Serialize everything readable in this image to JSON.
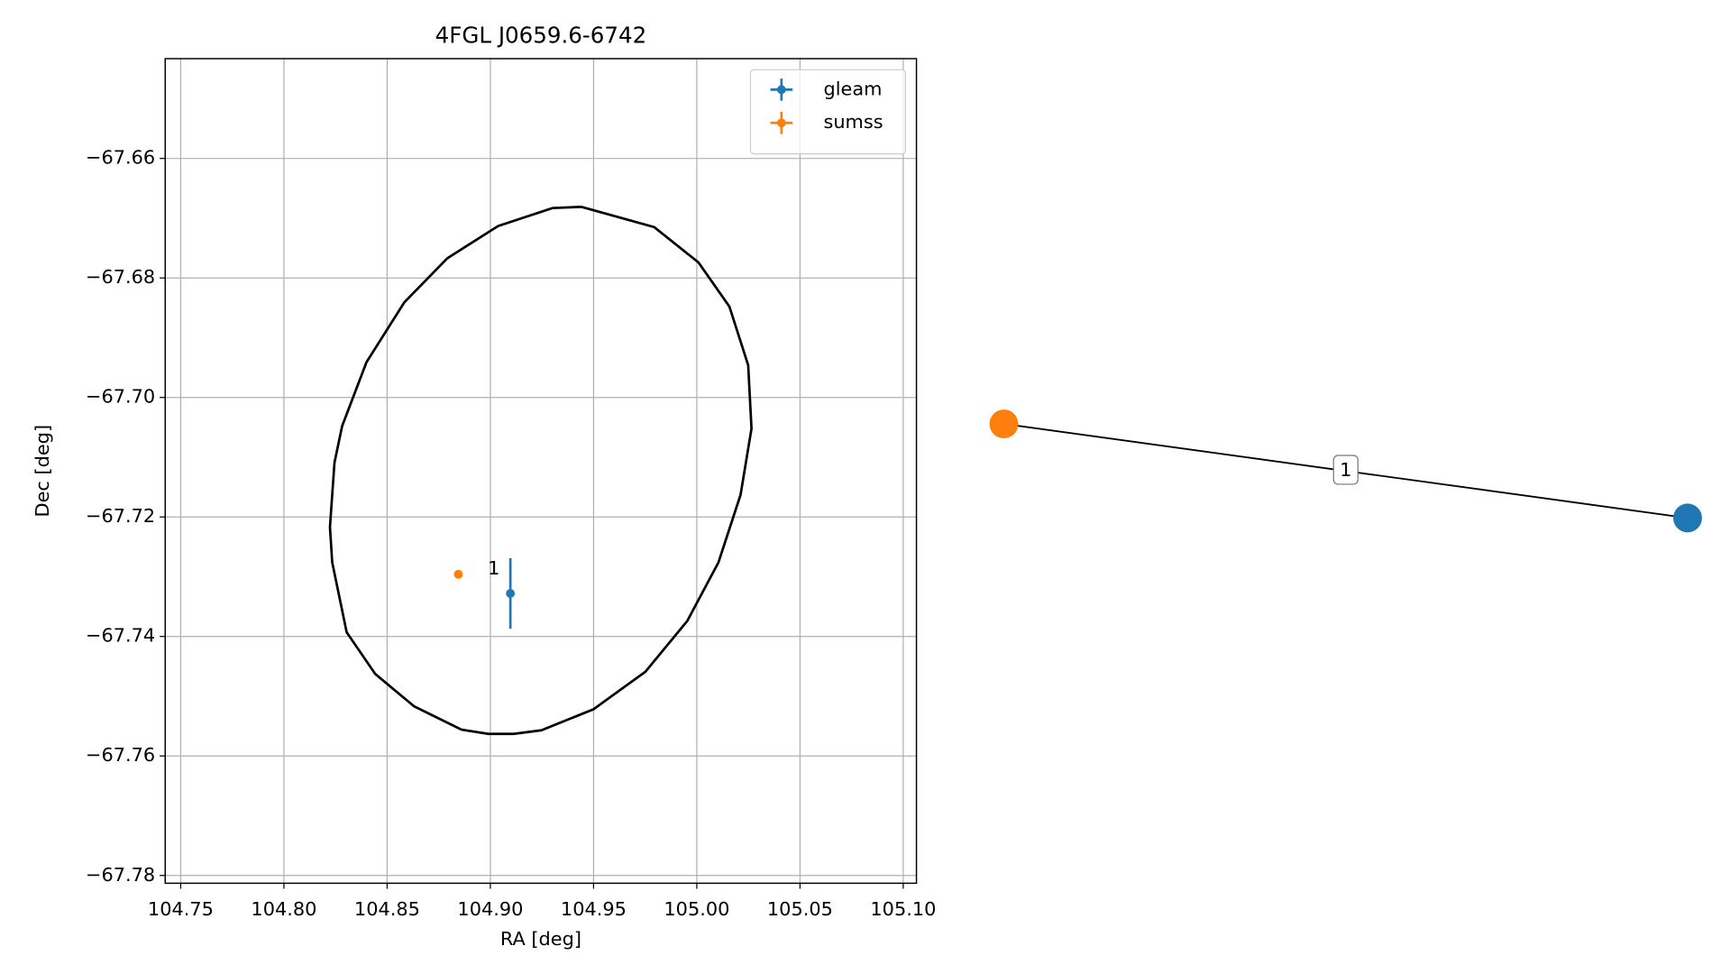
{
  "chart_data": [
    {
      "type": "scatter",
      "title": "4FGL J0659.6-6742",
      "xlabel": "RA [deg]",
      "ylabel": "Dec [deg]",
      "xlim": [
        104.7425,
        105.1064
      ],
      "ylim": [
        -67.7813,
        -67.6433
      ],
      "xticks": [
        104.75,
        {
          "value": 104.8,
          "label": "104.80"
        },
        104.85,
        {
          "value": 104.9,
          "label": "104.90"
        },
        104.95,
        {
          "value": 105.0,
          "label": "105.00"
        },
        105.05,
        {
          "value": 105.1,
          "label": "105.10"
        }
      ],
      "yticks": [
        {
          "value": -67.78,
          "label": "−67.78"
        },
        {
          "value": -67.76,
          "label": "−67.76"
        },
        {
          "value": -67.74,
          "label": "−67.74"
        },
        {
          "value": -67.72,
          "label": "−67.72"
        },
        {
          "value": -67.7,
          "label": "−67.70"
        },
        {
          "value": -67.68,
          "label": "−67.68"
        },
        {
          "value": -67.66,
          "label": "−67.66"
        }
      ],
      "grid": true,
      "legend": "upper right",
      "series": [
        {
          "name": "gleam",
          "color": "#1f77b4",
          "x": [
            104.9097
          ],
          "y": [
            -67.7328
          ],
          "yerr": [
            0.0059
          ]
        },
        {
          "name": "sumss",
          "color": "#ff7f0e",
          "x": [
            104.8845
          ],
          "y": [
            -67.7296
          ],
          "yerr": [
            0
          ]
        }
      ],
      "ellipse": {
        "color": "#000000",
        "x": [
          104.944,
          104.9794,
          105.0008,
          105.0158,
          105.0249,
          105.0265,
          105.0212,
          105.0105,
          104.9954,
          104.9751,
          104.9499,
          104.9247,
          104.9113,
          104.899,
          104.8861,
          104.8631,
          104.8443,
          104.8304,
          104.8234,
          104.8223,
          104.8245,
          104.8282,
          104.84,
          104.8583,
          104.8792,
          104.9038,
          104.9301,
          104.944
        ],
        "y": [
          -67.6681,
          -67.6715,
          -67.6774,
          -67.6848,
          -67.6946,
          -67.7052,
          -67.7163,
          -67.7276,
          -67.7374,
          -67.7459,
          -67.7522,
          -67.7557,
          -67.7563,
          -67.7563,
          -67.7556,
          -67.7517,
          -67.7463,
          -67.7393,
          -67.7276,
          -67.7217,
          -67.7109,
          -67.7048,
          -67.6941,
          -67.6841,
          -67.6767,
          -67.6713,
          -67.6683,
          -67.6681
        ]
      },
      "annotations": [
        {
          "text": "1",
          "x": 104.9017,
          "y": -67.7287
        }
      ]
    },
    {
      "type": "graph",
      "nodes": [
        {
          "color": "#ff7f0e"
        },
        {
          "color": "#1f77b4"
        }
      ],
      "edges": [
        {
          "source": 0,
          "target": 1,
          "label": "1"
        }
      ]
    }
  ]
}
